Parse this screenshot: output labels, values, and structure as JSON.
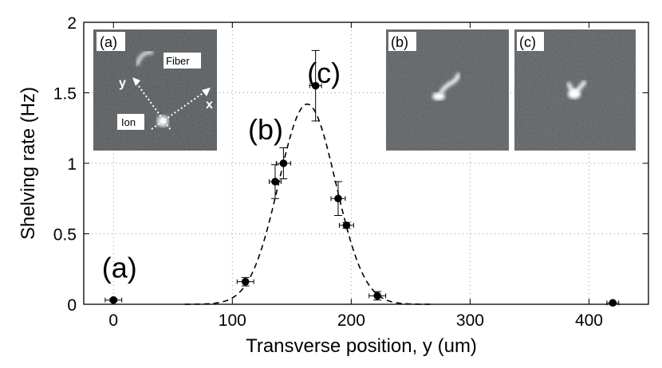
{
  "chart_data": {
    "type": "scatter",
    "xlabel": "Transverse position, y (um)",
    "ylabel": "Shelving rate (Hz)",
    "xlim": [
      -25,
      450
    ],
    "ylim": [
      0,
      2
    ],
    "xticks": [
      0,
      100,
      200,
      300,
      400
    ],
    "yticks": [
      0,
      0.5,
      1,
      1.5,
      2
    ],
    "xtick_labels": [
      "0",
      "100",
      "200",
      "300",
      "400"
    ],
    "ytick_labels": [
      "0",
      "0.5",
      "1",
      "1.5",
      "2"
    ],
    "grid": true,
    "series": [
      {
        "style": "points-with-error-bars",
        "points": [
          {
            "x": 0,
            "y": 0.03,
            "xerr": 7,
            "yerr": 0.01
          },
          {
            "x": 111,
            "y": 0.16,
            "xerr": 7,
            "yerr": 0.03
          },
          {
            "x": 136,
            "y": 0.87,
            "xerr": 5,
            "yerr": 0.12
          },
          {
            "x": 143,
            "y": 1.0,
            "xerr": 6,
            "yerr": 0.11
          },
          {
            "x": 170,
            "y": 1.55,
            "xerr": 5,
            "yerr": 0.25
          },
          {
            "x": 189,
            "y": 0.75,
            "xerr": 6,
            "yerr": 0.12
          },
          {
            "x": 196,
            "y": 0.56,
            "xerr": 6,
            "yerr": 0.02
          },
          {
            "x": 222,
            "y": 0.06,
            "xerr": 7,
            "yerr": 0.03
          },
          {
            "x": 420,
            "y": 0.01,
            "xerr": 5,
            "yerr": 0.0
          }
        ]
      },
      {
        "style": "dashed-gaussian-fit",
        "amplitude": 1.42,
        "center": 163,
        "sigma": 24
      }
    ],
    "annotations": [
      {
        "text": "(a)",
        "x": 5,
        "y": 0.19
      },
      {
        "text": "(b)",
        "x": 128,
        "y": 1.17
      },
      {
        "text": "(c)",
        "x": 177,
        "y": 1.57
      }
    ]
  },
  "insets": [
    {
      "panel_label": "(a)",
      "labels": [
        "Fiber",
        "Ion",
        "y",
        "x"
      ]
    },
    {
      "panel_label": "(b)"
    },
    {
      "panel_label": "(c)"
    }
  ]
}
